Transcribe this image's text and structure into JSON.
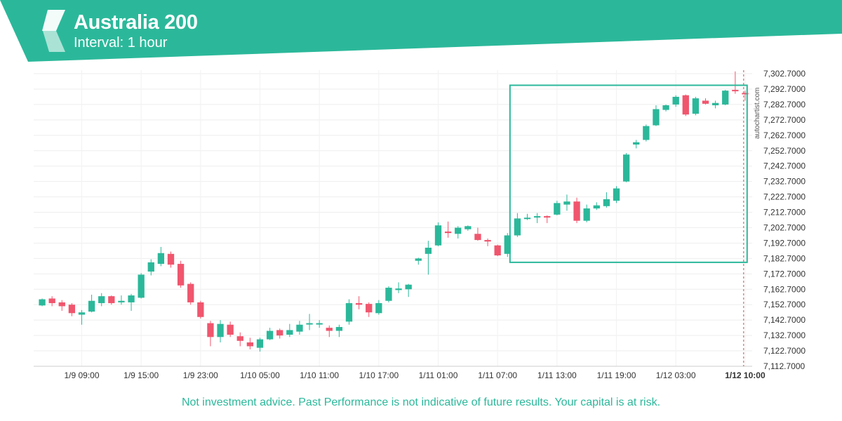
{
  "header": {
    "title": "Australia 200",
    "subtitle": "Interval: 1 hour",
    "band_color": "#2bb89a",
    "logo_icon": "autochartist-logo-icon"
  },
  "disclaimer": "Not investment advice. Past Performance is not indicative of future results. Your capital is at risk.",
  "watermark": "autochartist.com",
  "chart_data": {
    "type": "candlestick",
    "title": "Australia 200",
    "subtitle": "Interval: 1 hour",
    "ylim": [
      7112.7,
      7305
    ],
    "y_ticks": [
      "7,302.7000",
      "7,292.7000",
      "7,282.7000",
      "7,272.7000",
      "7,262.7000",
      "7,252.7000",
      "7,242.7000",
      "7,232.7000",
      "7,222.7000",
      "7,212.7000",
      "7,202.7000",
      "7,192.7000",
      "7,182.7000",
      "7,172.7000",
      "7,162.7000",
      "7,152.7000",
      "7,142.7000",
      "7,132.7000",
      "7,122.7000",
      "7,112.7000"
    ],
    "x_ticks": [
      {
        "label": "1/9 09:00",
        "index": 4,
        "bold": false
      },
      {
        "label": "1/9 15:00",
        "index": 10,
        "bold": false
      },
      {
        "label": "1/9 23:00",
        "index": 16,
        "bold": false
      },
      {
        "label": "1/10 05:00",
        "index": 22,
        "bold": false
      },
      {
        "label": "1/10 11:00",
        "index": 28,
        "bold": false
      },
      {
        "label": "1/10 17:00",
        "index": 34,
        "bold": false
      },
      {
        "label": "1/11 01:00",
        "index": 40,
        "bold": false
      },
      {
        "label": "1/11 07:00",
        "index": 46,
        "bold": false
      },
      {
        "label": "1/11 13:00",
        "index": 52,
        "bold": false
      },
      {
        "label": "1/11 19:00",
        "index": 58,
        "bold": false
      },
      {
        "label": "1/12 03:00",
        "index": 64,
        "bold": false
      },
      {
        "label": "1/12 10:00",
        "index": 71,
        "bold": true
      }
    ],
    "up_color": "#2bb89a",
    "down_color": "#f0566e",
    "candles": [
      [
        7152.2,
        7156.2,
        7151.7,
        7156.7
      ],
      [
        7156.7,
        7153.7,
        7151.7,
        7158.2
      ],
      [
        7154.2,
        7151.7,
        7148.7,
        7155.7
      ],
      [
        7152.7,
        7147.2,
        7145.2,
        7153.7
      ],
      [
        7146.2,
        7147.7,
        7139.7,
        7149.2
      ],
      [
        7148.2,
        7155.2,
        7147.7,
        7159.2
      ],
      [
        7153.7,
        7158.2,
        7151.7,
        7160.2
      ],
      [
        7158.2,
        7153.7,
        7152.7,
        7158.7
      ],
      [
        7154.2,
        7155.2,
        7152.7,
        7158.7
      ],
      [
        7154.2,
        7158.7,
        7148.7,
        7159.7
      ],
      [
        7157.2,
        7172.2,
        7156.7,
        7173.2
      ],
      [
        7174.2,
        7180.2,
        7171.7,
        7182.2
      ],
      [
        7179.2,
        7186.2,
        7177.7,
        7190.2
      ],
      [
        7185.7,
        7178.7,
        7176.7,
        7187.2
      ],
      [
        7179.2,
        7165.2,
        7163.7,
        7181.2
      ],
      [
        7166.2,
        7154.2,
        7152.7,
        7167.2
      ],
      [
        7154.2,
        7144.7,
        7143.7,
        7155.2
      ],
      [
        7140.7,
        7131.7,
        7125.7,
        7142.2
      ],
      [
        7131.7,
        7140.2,
        7128.2,
        7142.7
      ],
      [
        7139.7,
        7133.2,
        7131.7,
        7141.7
      ],
      [
        7132.2,
        7129.2,
        7125.7,
        7134.7
      ],
      [
        7128.2,
        7125.7,
        7123.7,
        7131.2
      ],
      [
        7124.7,
        7130.2,
        7122.2,
        7131.2
      ],
      [
        7130.2,
        7135.7,
        7129.7,
        7137.7
      ],
      [
        7136.2,
        7132.7,
        7130.7,
        7137.2
      ],
      [
        7133.2,
        7136.2,
        7131.7,
        7140.2
      ],
      [
        7135.2,
        7139.7,
        7133.2,
        7142.2
      ],
      [
        7140.2,
        7140.7,
        7136.2,
        7146.7
      ],
      [
        7140.2,
        7140.7,
        7137.7,
        7142.7
      ],
      [
        7137.7,
        7135.7,
        7131.7,
        7139.2
      ],
      [
        7135.7,
        7138.2,
        7131.7,
        7139.7
      ],
      [
        7141.7,
        7153.7,
        7139.7,
        7156.2
      ],
      [
        7153.7,
        7152.7,
        7149.7,
        7158.2
      ],
      [
        7153.2,
        7147.7,
        7144.7,
        7154.2
      ],
      [
        7147.2,
        7153.7,
        7146.2,
        7155.7
      ],
      [
        7155.2,
        7163.7,
        7154.2,
        7164.7
      ],
      [
        7162.2,
        7163.2,
        7160.2,
        7167.2
      ],
      [
        7162.7,
        7165.7,
        7157.7,
        7166.2
      ],
      [
        7181.2,
        7182.7,
        7178.7,
        7183.2
      ],
      [
        7185.7,
        7189.7,
        7172.2,
        7194.2
      ],
      [
        7191.2,
        7204.2,
        7190.7,
        7206.2
      ],
      [
        7200.2,
        7199.2,
        7196.2,
        7206.7
      ],
      [
        7198.7,
        7202.7,
        7195.7,
        7203.7
      ],
      [
        7201.7,
        7203.7,
        7200.7,
        7204.2
      ],
      [
        7198.7,
        7194.7,
        7194.2,
        7202.7
      ],
      [
        7194.7,
        7193.7,
        7190.7,
        7195.7
      ],
      [
        7191.2,
        7184.7,
        7184.2,
        7191.7
      ],
      [
        7185.7,
        7197.7,
        7183.7,
        7199.2
      ],
      [
        7197.7,
        7208.7,
        7196.7,
        7212.2
      ],
      [
        7208.7,
        7209.2,
        7207.7,
        7211.7
      ],
      [
        7209.7,
        7210.2,
        7205.7,
        7212.2
      ],
      [
        7210.2,
        7209.7,
        7205.7,
        7210.7
      ],
      [
        7211.2,
        7218.7,
        7210.7,
        7220.2
      ],
      [
        7217.7,
        7219.7,
        7213.7,
        7224.2
      ],
      [
        7219.7,
        7207.2,
        7205.7,
        7222.2
      ],
      [
        7207.2,
        7215.2,
        7206.2,
        7217.7
      ],
      [
        7215.2,
        7217.2,
        7214.2,
        7219.2
      ],
      [
        7216.7,
        7221.2,
        7215.7,
        7225.7
      ],
      [
        7220.2,
        7228.2,
        7218.7,
        7229.7
      ],
      [
        7232.7,
        7250.2,
        7232.2,
        7251.2
      ],
      [
        7256.7,
        7258.2,
        7254.2,
        7259.7
      ],
      [
        7259.7,
        7268.7,
        7258.7,
        7269.7
      ],
      [
        7269.2,
        7279.7,
        7268.7,
        7282.2
      ],
      [
        7279.2,
        7282.2,
        7278.2,
        7282.7
      ],
      [
        7282.7,
        7287.7,
        7281.2,
        7288.7
      ],
      [
        7288.7,
        7276.2,
        7275.2,
        7289.2
      ],
      [
        7276.7,
        7286.7,
        7275.7,
        7287.7
      ],
      [
        7285.2,
        7283.2,
        7282.7,
        7286.7
      ],
      [
        7282.2,
        7283.7,
        7280.2,
        7285.2
      ],
      [
        7282.7,
        7291.7,
        7282.2,
        7292.2
      ],
      [
        7292.2,
        7291.7,
        7289.7,
        7304.2
      ],
      [
        7290.2,
        7289.7,
        7285.2,
        7291.7
      ]
    ],
    "pattern_box": {
      "start_index": 48,
      "end_index": 71,
      "top": 7295.2,
      "bottom": 7180.2
    },
    "marker_index": 71
  }
}
